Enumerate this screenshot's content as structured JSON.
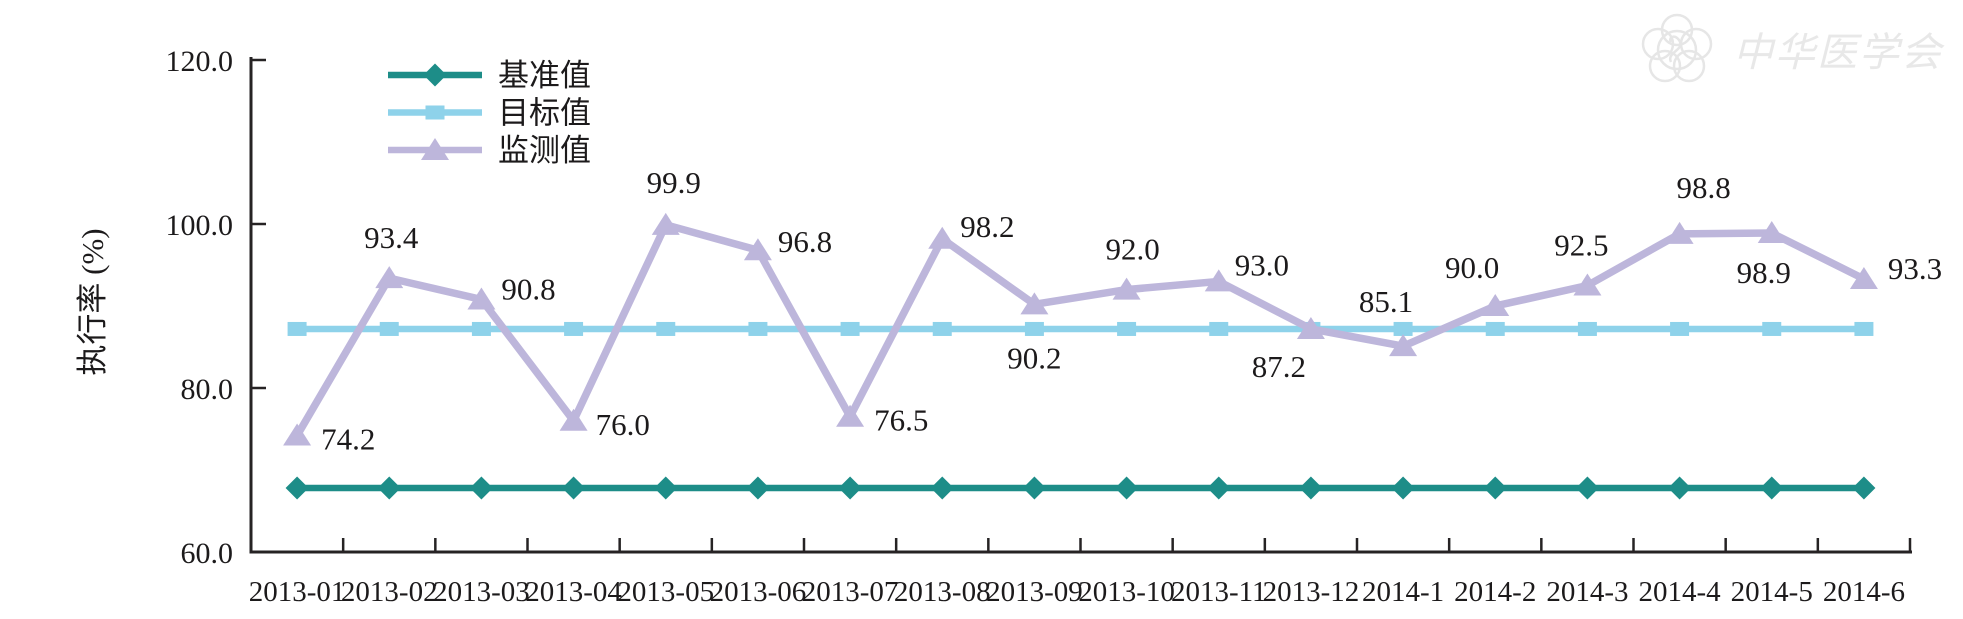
{
  "page": {
    "background": "#ffffff"
  },
  "watermark": {
    "text": "中华医学会",
    "emblem": "cma-flower-emblem",
    "color": "#e8e8e8"
  },
  "chart_data": {
    "type": "line",
    "title": "",
    "xlabel": "",
    "ylabel": "执行率 (%)",
    "ylim": [
      60,
      120
    ],
    "yticks": [
      60,
      80,
      100,
      120
    ],
    "ytick_labels": [
      "60.0",
      "80.0",
      "100.0",
      "120.0"
    ],
    "grid": false,
    "legend_position": "top-left-inside",
    "axis_color": "#262324",
    "text_color": "#1c1a1b",
    "categories": [
      "2013-01",
      "2013-02",
      "2013-03",
      "2013-04",
      "2013-05",
      "2013-06",
      "2013-07",
      "2013-08",
      "2013-09",
      "2013-10",
      "2013-11",
      "2013-12",
      "2014-1",
      "2014-2",
      "2014-3",
      "2014-4",
      "2014-5",
      "2014-6"
    ],
    "series": [
      {
        "key": "baseline",
        "name": "基准值",
        "marker": "diamond",
        "color": "#1d8d88",
        "line_width": 6.5,
        "constant_value": 67.8
      },
      {
        "key": "target",
        "name": "目标值",
        "marker": "square",
        "color": "#8ed2ea",
        "line_width": 6.5,
        "constant_value": 87.2
      },
      {
        "key": "monitored",
        "name": "监测值",
        "marker": "triangle",
        "color": "#bdb6db",
        "line_width": 7.5,
        "values": [
          74.2,
          93.4,
          90.8,
          76.0,
          99.9,
          96.8,
          76.5,
          98.2,
          90.2,
          92.0,
          93.0,
          87.2,
          85.1,
          90.0,
          92.5,
          98.8,
          98.9,
          93.3
        ],
        "data_labels": [
          "74.2",
          "93.4",
          "90.8",
          "76.0",
          "99.9",
          "96.8",
          "76.5",
          "98.2",
          "90.2",
          "92.0",
          "93.0",
          "87.2",
          "85.1",
          "90.0",
          "92.5",
          "98.8",
          "98.9",
          "93.3"
        ],
        "label_offsets": [
          [
            "start",
            24,
            14
          ],
          [
            "middle",
            2,
            -30
          ],
          [
            "start",
            20,
            0
          ],
          [
            "start",
            22,
            14
          ],
          [
            "middle",
            8,
            -32
          ],
          [
            "start",
            20,
            2
          ],
          [
            "start",
            24,
            14
          ],
          [
            "start",
            18,
            -2
          ],
          [
            "middle",
            0,
            64
          ],
          [
            "middle",
            6,
            -30
          ],
          [
            "start",
            16,
            -6
          ],
          [
            "middle",
            -32,
            48
          ],
          [
            "end",
            10,
            -34
          ],
          [
            "end",
            4,
            -28
          ],
          [
            "middle",
            -6,
            -30
          ],
          [
            "middle",
            24,
            -36
          ],
          [
            "middle",
            -8,
            50
          ],
          [
            "start",
            24,
            0
          ]
        ]
      }
    ]
  }
}
